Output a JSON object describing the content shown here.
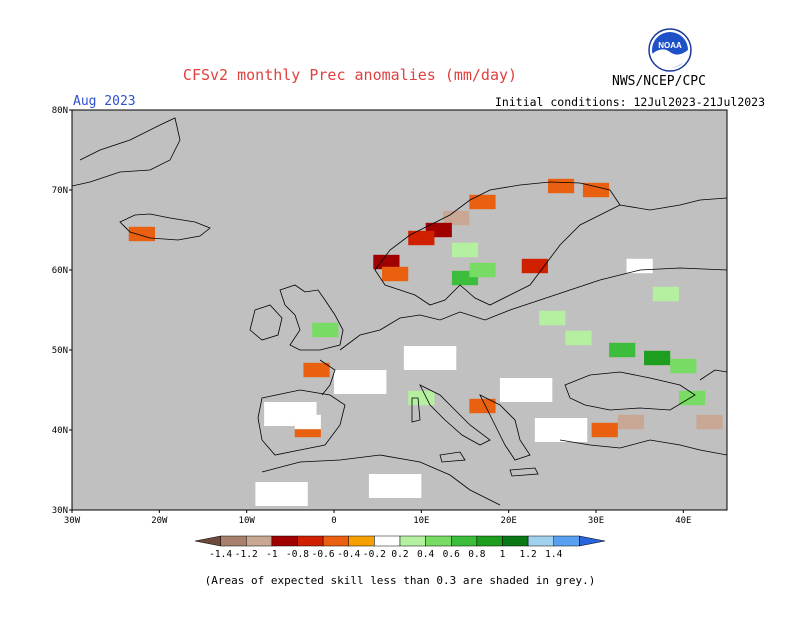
{
  "header": {
    "title": "CFSv2 monthly Prec anomalies (mm/day)",
    "agency": "NWS/NCEP/CPC",
    "logo_text": "NOAA",
    "month": "Aug 2023",
    "initial_conditions": "Initial conditions: 12Jul2023-21Jul2023"
  },
  "map": {
    "region": "Europe",
    "projection": "lat-lon",
    "lon_range": [
      -30,
      45
    ],
    "lat_range": [
      30,
      80
    ],
    "lat_labels": [
      "80N",
      "70N",
      "60N",
      "50N",
      "40N",
      "30N"
    ],
    "lon_labels": [
      "30W",
      "20W",
      "10W",
      "0",
      "10E",
      "20E",
      "30E",
      "40E"
    ],
    "low_skill_color": "#c0c0c0",
    "anomaly_cells": [
      {
        "lon": 17,
        "lat": 68.5,
        "value": -0.4
      },
      {
        "lon": 14,
        "lat": 66.5,
        "value": -1.0
      },
      {
        "lon": 12,
        "lat": 65,
        "value": -0.8
      },
      {
        "lon": 10,
        "lat": 64,
        "value": -0.6
      },
      {
        "lon": 6,
        "lat": 61,
        "value": -0.8
      },
      {
        "lon": 7,
        "lat": 59.5,
        "value": -0.4
      },
      {
        "lon": 26,
        "lat": 70.5,
        "value": -0.4
      },
      {
        "lon": 30,
        "lat": 70,
        "value": -0.4
      },
      {
        "lon": 23,
        "lat": 60.5,
        "value": -0.6
      },
      {
        "lon": -22,
        "lat": 64.5,
        "value": -0.4
      },
      {
        "lon": -2,
        "lat": 47.5,
        "value": -0.4
      },
      {
        "lon": 17,
        "lat": 43,
        "value": -0.4
      },
      {
        "lon": 34,
        "lat": 41,
        "value": -1.0
      },
      {
        "lon": 31,
        "lat": 40,
        "value": -0.4
      },
      {
        "lon": 43,
        "lat": 41,
        "value": -1.0
      },
      {
        "lon": -3,
        "lat": 40,
        "value": -0.4
      },
      {
        "lon": 15,
        "lat": 62.5,
        "value": 0.4
      },
      {
        "lon": 15,
        "lat": 59,
        "value": 0.8
      },
      {
        "lon": 17,
        "lat": 60,
        "value": 0.6
      },
      {
        "lon": -1,
        "lat": 52.5,
        "value": 0.6
      },
      {
        "lon": 25,
        "lat": 54,
        "value": 0.4
      },
      {
        "lon": 33,
        "lat": 50,
        "value": 0.8
      },
      {
        "lon": 37,
        "lat": 49,
        "value": 1.0
      },
      {
        "lon": 40,
        "lat": 48,
        "value": 0.6
      },
      {
        "lon": 28,
        "lat": 51.5,
        "value": 0.4
      },
      {
        "lon": 38,
        "lat": 57,
        "value": 0.4
      },
      {
        "lon": 35,
        "lat": 60.5,
        "value": 0.2
      },
      {
        "lon": 41,
        "lat": 44,
        "value": 0.6
      },
      {
        "lon": 10,
        "lat": 44,
        "value": 0.4
      },
      {
        "lon": -3,
        "lat": 41,
        "value": 0.2
      }
    ],
    "white_near_zero_cells": [
      {
        "lon": 11,
        "lat": 49
      },
      {
        "lon": 22,
        "lat": 45
      },
      {
        "lon": 3,
        "lat": 46
      },
      {
        "lon": -5,
        "lat": 42
      },
      {
        "lon": 26,
        "lat": 40
      },
      {
        "lon": 7,
        "lat": 33
      },
      {
        "lon": -6,
        "lat": 32
      }
    ]
  },
  "colorbar": {
    "labels": [
      "-1.4",
      "-1.2",
      "-1",
      "-0.8",
      "-0.6",
      "-0.4",
      "-0.2",
      "0.2",
      "0.4",
      "0.6",
      "0.8",
      "1",
      "1.2",
      "1.4"
    ],
    "colors": [
      "#6e4a3c",
      "#a6806a",
      "#c8a894",
      "#a00000",
      "#d02000",
      "#e86010",
      "#f5a000",
      "#ffffff",
      "#b4f0a0",
      "#78dc64",
      "#3cbe3c",
      "#1e9e1e",
      "#0a7814",
      "#a0d2f0",
      "#5aa0f0",
      "#2864dc"
    ]
  },
  "footer": {
    "note": "(Areas of expected skill less than 0.3 are shaded in grey.)"
  }
}
